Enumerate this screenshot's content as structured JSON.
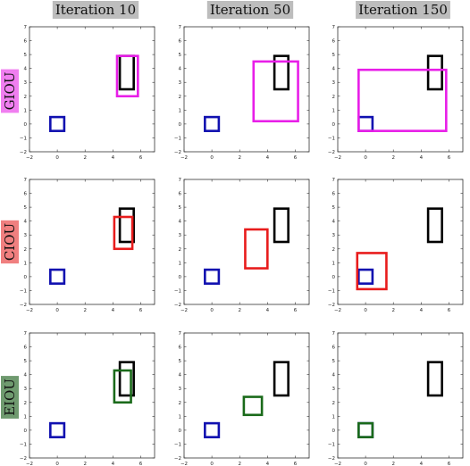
{
  "columns": [
    "Iteration 10",
    "Iteration 50",
    "Iteration 150"
  ],
  "rows": [
    {
      "label": "GIOU",
      "color": "#f07ef0",
      "pred_color": "#e81ee8"
    },
    {
      "label": "CIOU",
      "color": "#f07f7f",
      "pred_color": "#e81c1c"
    },
    {
      "label": "EIOU",
      "color": "#6f9a6f",
      "pred_color": "#1a6a1a"
    }
  ],
  "colors": {
    "target": "#000000",
    "anchor": "#1010b0",
    "col_title_bg": "#bdbdbd"
  },
  "axes": {
    "xlim": [
      -2,
      7
    ],
    "ylim": [
      -2,
      7
    ],
    "xticks": [
      "−2",
      "0",
      "2",
      "4",
      "6"
    ],
    "yticks": [
      "−2",
      "−1",
      "0",
      "1",
      "2",
      "3",
      "4",
      "5",
      "6",
      "7"
    ]
  },
  "boxes": {
    "target": [
      4.5,
      2.5,
      5.5,
      4.9
    ],
    "anchor": [
      -0.5,
      -0.5,
      0.5,
      0.5
    ],
    "predicted": [
      [
        [
          4.3,
          2.0,
          5.8,
          4.9
        ],
        [
          3.0,
          0.2,
          6.2,
          4.5
        ],
        [
          -0.5,
          -0.5,
          5.8,
          3.9
        ]
      ],
      [
        [
          4.1,
          2.0,
          5.4,
          4.3
        ],
        [
          2.4,
          0.6,
          4.0,
          3.4
        ],
        [
          -0.6,
          -0.9,
          1.5,
          1.7
        ]
      ],
      [
        [
          4.1,
          2.0,
          5.3,
          4.3
        ],
        [
          2.3,
          1.1,
          3.6,
          2.4
        ],
        [
          -0.5,
          -0.5,
          0.5,
          0.5
        ]
      ]
    ]
  }
}
